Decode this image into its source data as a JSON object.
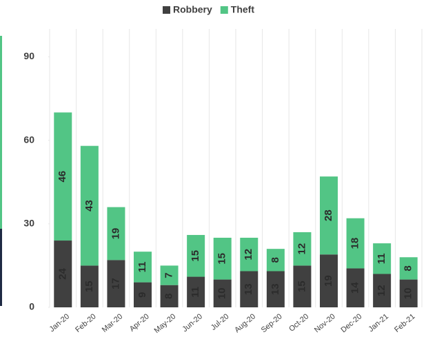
{
  "chart_data": {
    "type": "stacked_bar",
    "categories": [
      "Jan-20",
      "Feb-20",
      "Mar-20",
      "Apr-20",
      "May-20",
      "Jun-20",
      "Jul-20",
      "Aug-20",
      "Sep-20",
      "Oct-20",
      "Nov-20",
      "Dec-20",
      "Jan-21",
      "Feb-21"
    ],
    "series": [
      {
        "name": "Robbery",
        "color": "#404040",
        "values": [
          24,
          15,
          17,
          9,
          8,
          11,
          10,
          13,
          13,
          15,
          19,
          14,
          12,
          10
        ]
      },
      {
        "name": "Theft",
        "color": "#52c585",
        "values": [
          46,
          43,
          19,
          11,
          7,
          15,
          15,
          12,
          8,
          12,
          28,
          18,
          11,
          8
        ]
      }
    ],
    "ylim": [
      0,
      100
    ],
    "yticks": [
      0,
      30,
      60,
      90
    ],
    "grid": true,
    "legend": "top"
  }
}
